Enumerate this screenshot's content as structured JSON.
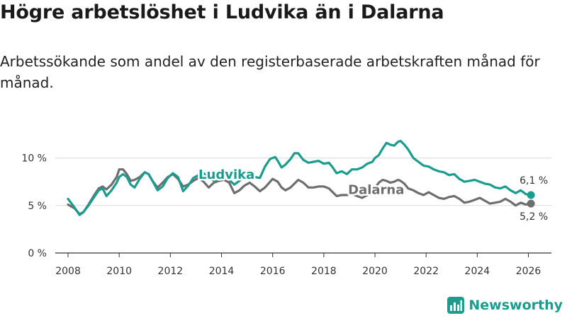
{
  "title": "Högre arbetslöshet i Ludvika än i Dalarna",
  "subtitle": "Arbetssökande som andel av den registerbaserade arbetskraften månad för månad.",
  "brand": "Newsworthy",
  "colors": {
    "ludvika": "#1a9c8e",
    "dalarna": "#6e6e6e",
    "grid": "#d9d9d9",
    "axis": "#333333"
  },
  "chart_data": {
    "type": "line",
    "title": "Högre arbetslöshet i Ludvika än i Dalarna",
    "xlabel": "",
    "ylabel": "",
    "xlim": [
      2007.5,
      2026.9
    ],
    "ylim": [
      0,
      12.5
    ],
    "x_ticks": [
      2008,
      2010,
      2012,
      2014,
      2016,
      2018,
      2020,
      2022,
      2024,
      2026
    ],
    "x_tick_labels": [
      "2008",
      "2010",
      "2012",
      "2014",
      "2016",
      "2018",
      "2020",
      "2022",
      "2024",
      "2026"
    ],
    "y_ticks": [
      0,
      5,
      10
    ],
    "y_tick_labels": [
      "0 %",
      "5 %",
      "10 %"
    ],
    "grid": true,
    "series": [
      {
        "name": "Ludvika",
        "end_label": "6,1 %",
        "points": [
          [
            2008.0,
            5.7
          ],
          [
            2008.25,
            4.8
          ],
          [
            2008.45,
            4.0
          ],
          [
            2008.6,
            4.3
          ],
          [
            2008.8,
            5.0
          ],
          [
            2009.0,
            5.8
          ],
          [
            2009.2,
            6.6
          ],
          [
            2009.35,
            6.8
          ],
          [
            2009.5,
            6.0
          ],
          [
            2009.7,
            6.6
          ],
          [
            2009.9,
            7.4
          ],
          [
            2010.0,
            8.0
          ],
          [
            2010.15,
            8.3
          ],
          [
            2010.3,
            8.0
          ],
          [
            2010.45,
            7.2
          ],
          [
            2010.6,
            6.9
          ],
          [
            2010.8,
            7.8
          ],
          [
            2011.0,
            8.5
          ],
          [
            2011.15,
            8.3
          ],
          [
            2011.3,
            7.6
          ],
          [
            2011.5,
            6.6
          ],
          [
            2011.7,
            7.0
          ],
          [
            2011.9,
            7.9
          ],
          [
            2012.1,
            8.4
          ],
          [
            2012.3,
            8.0
          ],
          [
            2012.5,
            6.5
          ],
          [
            2012.7,
            7.1
          ],
          [
            2012.9,
            7.9
          ],
          [
            2013.1,
            8.2
          ],
          [
            2013.3,
            8.4
          ],
          [
            2013.5,
            8.0
          ],
          [
            2013.7,
            7.6
          ],
          [
            2013.9,
            8.0
          ],
          [
            2014.1,
            8.1
          ],
          [
            2014.3,
            7.7
          ],
          [
            2014.5,
            7.2
          ],
          [
            2014.7,
            7.6
          ],
          [
            2014.9,
            8.1
          ],
          [
            2015.1,
            8.3
          ],
          [
            2015.3,
            8.0
          ],
          [
            2015.5,
            7.9
          ],
          [
            2015.7,
            9.1
          ],
          [
            2015.9,
            9.9
          ],
          [
            2016.1,
            10.1
          ],
          [
            2016.2,
            9.7
          ],
          [
            2016.35,
            9.0
          ],
          [
            2016.5,
            9.3
          ],
          [
            2016.7,
            9.9
          ],
          [
            2016.85,
            10.5
          ],
          [
            2017.0,
            10.5
          ],
          [
            2017.2,
            9.8
          ],
          [
            2017.4,
            9.5
          ],
          [
            2017.6,
            9.6
          ],
          [
            2017.8,
            9.7
          ],
          [
            2018.0,
            9.4
          ],
          [
            2018.2,
            9.5
          ],
          [
            2018.35,
            9.0
          ],
          [
            2018.5,
            8.4
          ],
          [
            2018.7,
            8.6
          ],
          [
            2018.9,
            8.3
          ],
          [
            2019.1,
            8.8
          ],
          [
            2019.3,
            8.8
          ],
          [
            2019.5,
            9.0
          ],
          [
            2019.7,
            9.4
          ],
          [
            2019.9,
            9.6
          ],
          [
            2020.0,
            10.0
          ],
          [
            2020.15,
            10.3
          ],
          [
            2020.3,
            11.0
          ],
          [
            2020.45,
            11.6
          ],
          [
            2020.6,
            11.4
          ],
          [
            2020.75,
            11.3
          ],
          [
            2020.9,
            11.7
          ],
          [
            2021.0,
            11.8
          ],
          [
            2021.15,
            11.4
          ],
          [
            2021.3,
            10.9
          ],
          [
            2021.5,
            10.0
          ],
          [
            2021.7,
            9.6
          ],
          [
            2021.9,
            9.2
          ],
          [
            2022.1,
            9.1
          ],
          [
            2022.3,
            8.8
          ],
          [
            2022.5,
            8.6
          ],
          [
            2022.7,
            8.5
          ],
          [
            2022.9,
            8.2
          ],
          [
            2023.1,
            8.3
          ],
          [
            2023.3,
            7.8
          ],
          [
            2023.5,
            7.5
          ],
          [
            2023.7,
            7.6
          ],
          [
            2023.9,
            7.7
          ],
          [
            2024.1,
            7.5
          ],
          [
            2024.3,
            7.3
          ],
          [
            2024.5,
            7.2
          ],
          [
            2024.7,
            6.9
          ],
          [
            2024.9,
            6.8
          ],
          [
            2025.1,
            7.0
          ],
          [
            2025.3,
            6.6
          ],
          [
            2025.5,
            6.3
          ],
          [
            2025.7,
            6.6
          ],
          [
            2025.9,
            6.2
          ],
          [
            2026.1,
            6.1
          ]
        ]
      },
      {
        "name": "Dalarna",
        "end_label": "5,2 %",
        "points": [
          [
            2008.0,
            5.1
          ],
          [
            2008.25,
            4.7
          ],
          [
            2008.45,
            4.1
          ],
          [
            2008.6,
            4.3
          ],
          [
            2008.8,
            5.1
          ],
          [
            2009.0,
            6.0
          ],
          [
            2009.2,
            6.8
          ],
          [
            2009.35,
            7.0
          ],
          [
            2009.5,
            6.7
          ],
          [
            2009.7,
            7.2
          ],
          [
            2009.9,
            8.0
          ],
          [
            2010.0,
            8.8
          ],
          [
            2010.15,
            8.8
          ],
          [
            2010.3,
            8.3
          ],
          [
            2010.45,
            7.6
          ],
          [
            2010.6,
            7.7
          ],
          [
            2010.8,
            8.0
          ],
          [
            2011.0,
            8.5
          ],
          [
            2011.15,
            8.3
          ],
          [
            2011.3,
            7.6
          ],
          [
            2011.5,
            6.9
          ],
          [
            2011.7,
            7.4
          ],
          [
            2011.9,
            8.0
          ],
          [
            2012.1,
            8.3
          ],
          [
            2012.3,
            7.8
          ],
          [
            2012.5,
            7.0
          ],
          [
            2012.7,
            7.2
          ],
          [
            2012.9,
            7.6
          ],
          [
            2013.1,
            7.9
          ],
          [
            2013.3,
            7.5
          ],
          [
            2013.5,
            6.9
          ],
          [
            2013.7,
            7.4
          ],
          [
            2013.9,
            7.6
          ],
          [
            2014.1,
            7.7
          ],
          [
            2014.3,
            7.4
          ],
          [
            2014.5,
            6.3
          ],
          [
            2014.7,
            6.6
          ],
          [
            2014.9,
            7.1
          ],
          [
            2015.1,
            7.4
          ],
          [
            2015.3,
            7.0
          ],
          [
            2015.5,
            6.5
          ],
          [
            2015.7,
            6.9
          ],
          [
            2015.9,
            7.5
          ],
          [
            2016.0,
            7.8
          ],
          [
            2016.2,
            7.5
          ],
          [
            2016.35,
            6.9
          ],
          [
            2016.5,
            6.6
          ],
          [
            2016.7,
            6.9
          ],
          [
            2016.85,
            7.3
          ],
          [
            2017.0,
            7.7
          ],
          [
            2017.2,
            7.4
          ],
          [
            2017.4,
            6.9
          ],
          [
            2017.6,
            6.9
          ],
          [
            2017.8,
            7.0
          ],
          [
            2018.0,
            7.0
          ],
          [
            2018.2,
            6.8
          ],
          [
            2018.35,
            6.4
          ],
          [
            2018.5,
            6.0
          ],
          [
            2018.7,
            6.1
          ],
          [
            2018.9,
            6.1
          ],
          [
            2019.1,
            6.2
          ],
          [
            2019.3,
            6.0
          ],
          [
            2019.5,
            5.8
          ],
          [
            2019.7,
            6.1
          ],
          [
            2019.9,
            6.4
          ],
          [
            2020.0,
            6.8
          ],
          [
            2020.15,
            7.4
          ],
          [
            2020.3,
            7.7
          ],
          [
            2020.45,
            7.6
          ],
          [
            2020.6,
            7.4
          ],
          [
            2020.75,
            7.5
          ],
          [
            2020.9,
            7.7
          ],
          [
            2021.0,
            7.6
          ],
          [
            2021.15,
            7.3
          ],
          [
            2021.3,
            6.8
          ],
          [
            2021.5,
            6.6
          ],
          [
            2021.7,
            6.3
          ],
          [
            2021.9,
            6.1
          ],
          [
            2022.1,
            6.4
          ],
          [
            2022.3,
            6.1
          ],
          [
            2022.5,
            5.8
          ],
          [
            2022.7,
            5.7
          ],
          [
            2022.9,
            5.9
          ],
          [
            2023.1,
            6.0
          ],
          [
            2023.3,
            5.7
          ],
          [
            2023.5,
            5.3
          ],
          [
            2023.7,
            5.4
          ],
          [
            2023.9,
            5.6
          ],
          [
            2024.1,
            5.8
          ],
          [
            2024.3,
            5.5
          ],
          [
            2024.5,
            5.2
          ],
          [
            2024.7,
            5.3
          ],
          [
            2024.9,
            5.4
          ],
          [
            2025.1,
            5.7
          ],
          [
            2025.3,
            5.4
          ],
          [
            2025.5,
            5.0
          ],
          [
            2025.7,
            5.3
          ],
          [
            2025.9,
            5.1
          ],
          [
            2026.1,
            5.2
          ]
        ]
      }
    ]
  }
}
